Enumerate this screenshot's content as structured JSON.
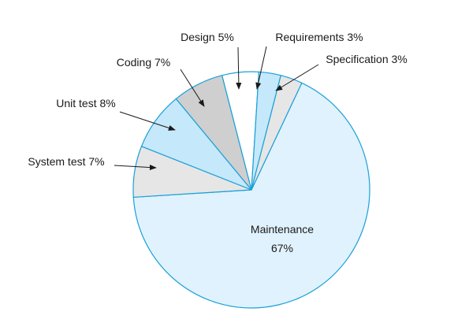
{
  "chart_data": {
    "type": "pie",
    "title": "",
    "slices": [
      {
        "label": "Maintenance",
        "value": 67,
        "value_label": "67%",
        "color": "#e0f2fd"
      },
      {
        "label": "System test",
        "value": 7,
        "value_label": "7%",
        "color": "#e6e6e6"
      },
      {
        "label": "Unit test",
        "value": 8,
        "value_label": "8%",
        "color": "#c6e8fb"
      },
      {
        "label": "Coding",
        "value": 7,
        "value_label": "7%",
        "color": "#cfcfcf"
      },
      {
        "label": "Design",
        "value": 5,
        "value_label": "5%",
        "color": "#ffffff"
      },
      {
        "label": "Requirements",
        "value": 3,
        "value_label": "3%",
        "color": "#c6e8fb"
      },
      {
        "label": "Specification",
        "value": 3,
        "value_label": "3%",
        "color": "#e6e6e6"
      }
    ],
    "colors": {
      "outline": "#1aa0d8",
      "text": "#1a1a1a"
    }
  }
}
